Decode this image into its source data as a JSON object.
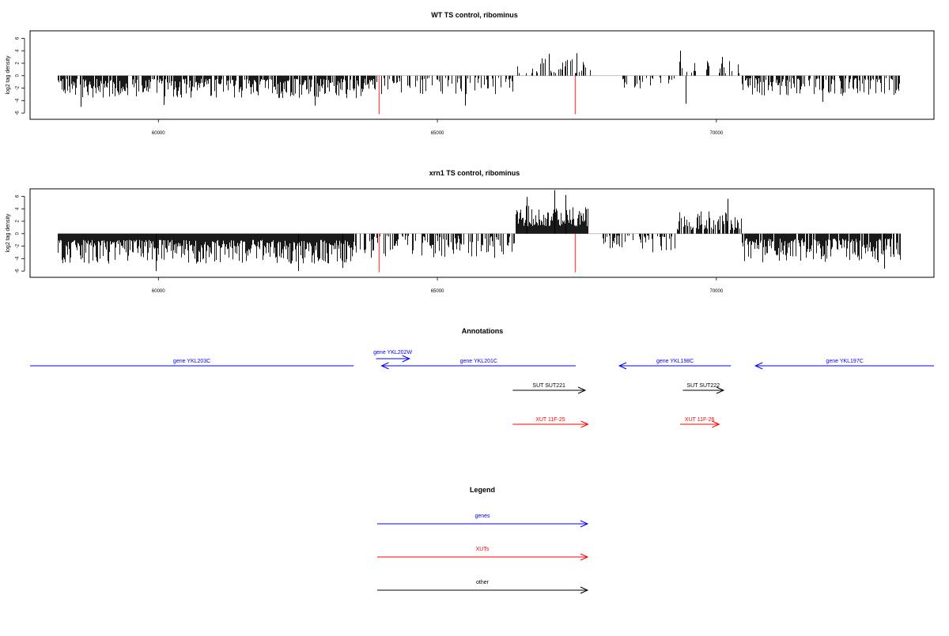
{
  "chart_data": [
    {
      "type": "bar",
      "title": "WT TS control, ribominus",
      "ylabel": "log2 tag density",
      "xlim": [
        57700,
        73900
      ],
      "ylim": [
        -7,
        7.2
      ],
      "xticks": [
        60000,
        65000,
        70000
      ],
      "xtick_labels": [
        "60000",
        "65000",
        "70000"
      ],
      "yticks": [
        -6,
        -4,
        -2,
        0,
        2,
        4,
        6
      ],
      "ytick_labels": [
        "-6",
        "-4",
        "-2",
        "0",
        "2",
        "4",
        "6"
      ],
      "grid": false,
      "colors": {
        "bars": "#000000",
        "markers": "#ff5555",
        "baseline": "#999999"
      },
      "regions": [
        {
          "x_start": 58200,
          "x_end": 63900,
          "sign": -1,
          "min": 0.5,
          "max": 3.6,
          "density": 0.8
        },
        {
          "x_start": 63900,
          "x_end": 66400,
          "sign": -1,
          "min": 0.3,
          "max": 3.0,
          "density": 0.35
        },
        {
          "x_start": 66400,
          "x_end": 67750,
          "sign": 1,
          "min": 0.4,
          "max": 3.0,
          "density": 0.3
        },
        {
          "x_start": 68300,
          "x_end": 69300,
          "sign": -1,
          "min": 0.3,
          "max": 2.2,
          "density": 0.25
        },
        {
          "x_start": 69300,
          "x_end": 70450,
          "sign": 1,
          "min": 0.4,
          "max": 2.6,
          "density": 0.3
        },
        {
          "x_start": 70450,
          "x_end": 73300,
          "sign": -1,
          "min": 0.4,
          "max": 3.2,
          "density": 0.6
        }
      ],
      "peaks": [
        {
          "x": 58600,
          "y": -5.0
        },
        {
          "x": 60100,
          "y": -4.7
        },
        {
          "x": 62800,
          "y": -4.8
        },
        {
          "x": 65500,
          "y": -4.8
        },
        {
          "x": 67000,
          "y": 3.5
        },
        {
          "x": 67500,
          "y": 3.6
        },
        {
          "x": 69350,
          "y": 4.0
        },
        {
          "x": 69450,
          "y": -4.5
        },
        {
          "x": 70100,
          "y": 3.0
        },
        {
          "x": 71900,
          "y": -4.2
        }
      ],
      "markers": [
        {
          "x": 63950,
          "y": -6.2
        },
        {
          "x": 67470,
          "y": -6.2
        }
      ]
    },
    {
      "type": "bar",
      "title": "xrn1 TS control, ribominus",
      "ylabel": "log2 tag density",
      "xlim": [
        57700,
        73900
      ],
      "ylim": [
        -7,
        7.2
      ],
      "xticks": [
        60000,
        65000,
        70000
      ],
      "xtick_labels": [
        "60000",
        "65000",
        "70000"
      ],
      "yticks": [
        -6,
        -4,
        -2,
        0,
        2,
        4,
        6
      ],
      "ytick_labels": [
        "-6",
        "-4",
        "-2",
        "0",
        "2",
        "4",
        "6"
      ],
      "grid": false,
      "colors": {
        "bars": "#000000",
        "markers": "#ff5555",
        "baseline": "#999999"
      },
      "regions": [
        {
          "x_start": 58200,
          "x_end": 63500,
          "sign": -1,
          "min": 1.0,
          "max": 4.8,
          "density": 1.0
        },
        {
          "x_start": 63500,
          "x_end": 66400,
          "sign": -1,
          "min": 0.3,
          "max": 4.0,
          "density": 0.55
        },
        {
          "x_start": 66400,
          "x_end": 67700,
          "sign": 1,
          "min": 1.2,
          "max": 4.6,
          "density": 1.0
        },
        {
          "x_start": 67900,
          "x_end": 69300,
          "sign": -1,
          "min": 0.3,
          "max": 3.0,
          "density": 0.4
        },
        {
          "x_start": 69300,
          "x_end": 70450,
          "sign": 1,
          "min": 0.6,
          "max": 3.6,
          "density": 0.7
        },
        {
          "x_start": 70450,
          "x_end": 73300,
          "sign": -1,
          "min": 0.8,
          "max": 4.6,
          "density": 0.9
        }
      ],
      "peaks": [
        {
          "x": 59950,
          "y": -6.0
        },
        {
          "x": 62500,
          "y": -6.0
        },
        {
          "x": 63300,
          "y": -5.5
        },
        {
          "x": 66600,
          "y": 5.9
        },
        {
          "x": 67100,
          "y": 7.0
        },
        {
          "x": 67300,
          "y": 6.2
        },
        {
          "x": 70200,
          "y": 5.6
        },
        {
          "x": 73000,
          "y": -5.6
        }
      ],
      "markers": [
        {
          "x": 63950,
          "y": -6.2
        },
        {
          "x": 67470,
          "y": -6.2
        }
      ]
    }
  ],
  "annotations": {
    "title": "Annotations",
    "features": [
      {
        "label": "gene YKL203C",
        "start": 57700,
        "end": 63500,
        "strand": "-",
        "row": 1,
        "color": "#0000ff",
        "arrow": false
      },
      {
        "label": "gene YKL202W",
        "start": 63900,
        "end": 64500,
        "strand": "+",
        "row": 0,
        "color": "#0000ff",
        "arrow": true
      },
      {
        "label": "gene YKL201C",
        "start": 64000,
        "end": 67480,
        "strand": "-",
        "row": 1,
        "color": "#0000ff",
        "arrow": true
      },
      {
        "label": "gene YKL198C",
        "start": 68260,
        "end": 70260,
        "strand": "-",
        "row": 1,
        "color": "#0000ff",
        "arrow": true
      },
      {
        "label": "gene YKL197C",
        "start": 70700,
        "end": 73900,
        "strand": "-",
        "row": 1,
        "color": "#0000ff",
        "arrow": true
      },
      {
        "label": "SUT SUT221",
        "start": 66350,
        "end": 67650,
        "strand": "+",
        "row": 2,
        "color": "#000000",
        "arrow": true
      },
      {
        "label": "SUT SUT222",
        "start": 69400,
        "end": 70130,
        "strand": "+",
        "row": 2,
        "color": "#000000",
        "arrow": true
      },
      {
        "label": "XUT 11F-25",
        "start": 66350,
        "end": 67700,
        "strand": "+",
        "row": 3,
        "color": "#ff0000",
        "arrow": true
      },
      {
        "label": "XUT 11F-26",
        "start": 69350,
        "end": 70050,
        "strand": "+",
        "row": 3,
        "color": "#ff0000",
        "arrow": true
      }
    ]
  },
  "legend": {
    "title": "Legend",
    "items": [
      {
        "label": "genes",
        "color": "#0000ff"
      },
      {
        "label": "XUTs",
        "color": "#ff0000"
      },
      {
        "label": "other",
        "color": "#000000"
      }
    ]
  }
}
